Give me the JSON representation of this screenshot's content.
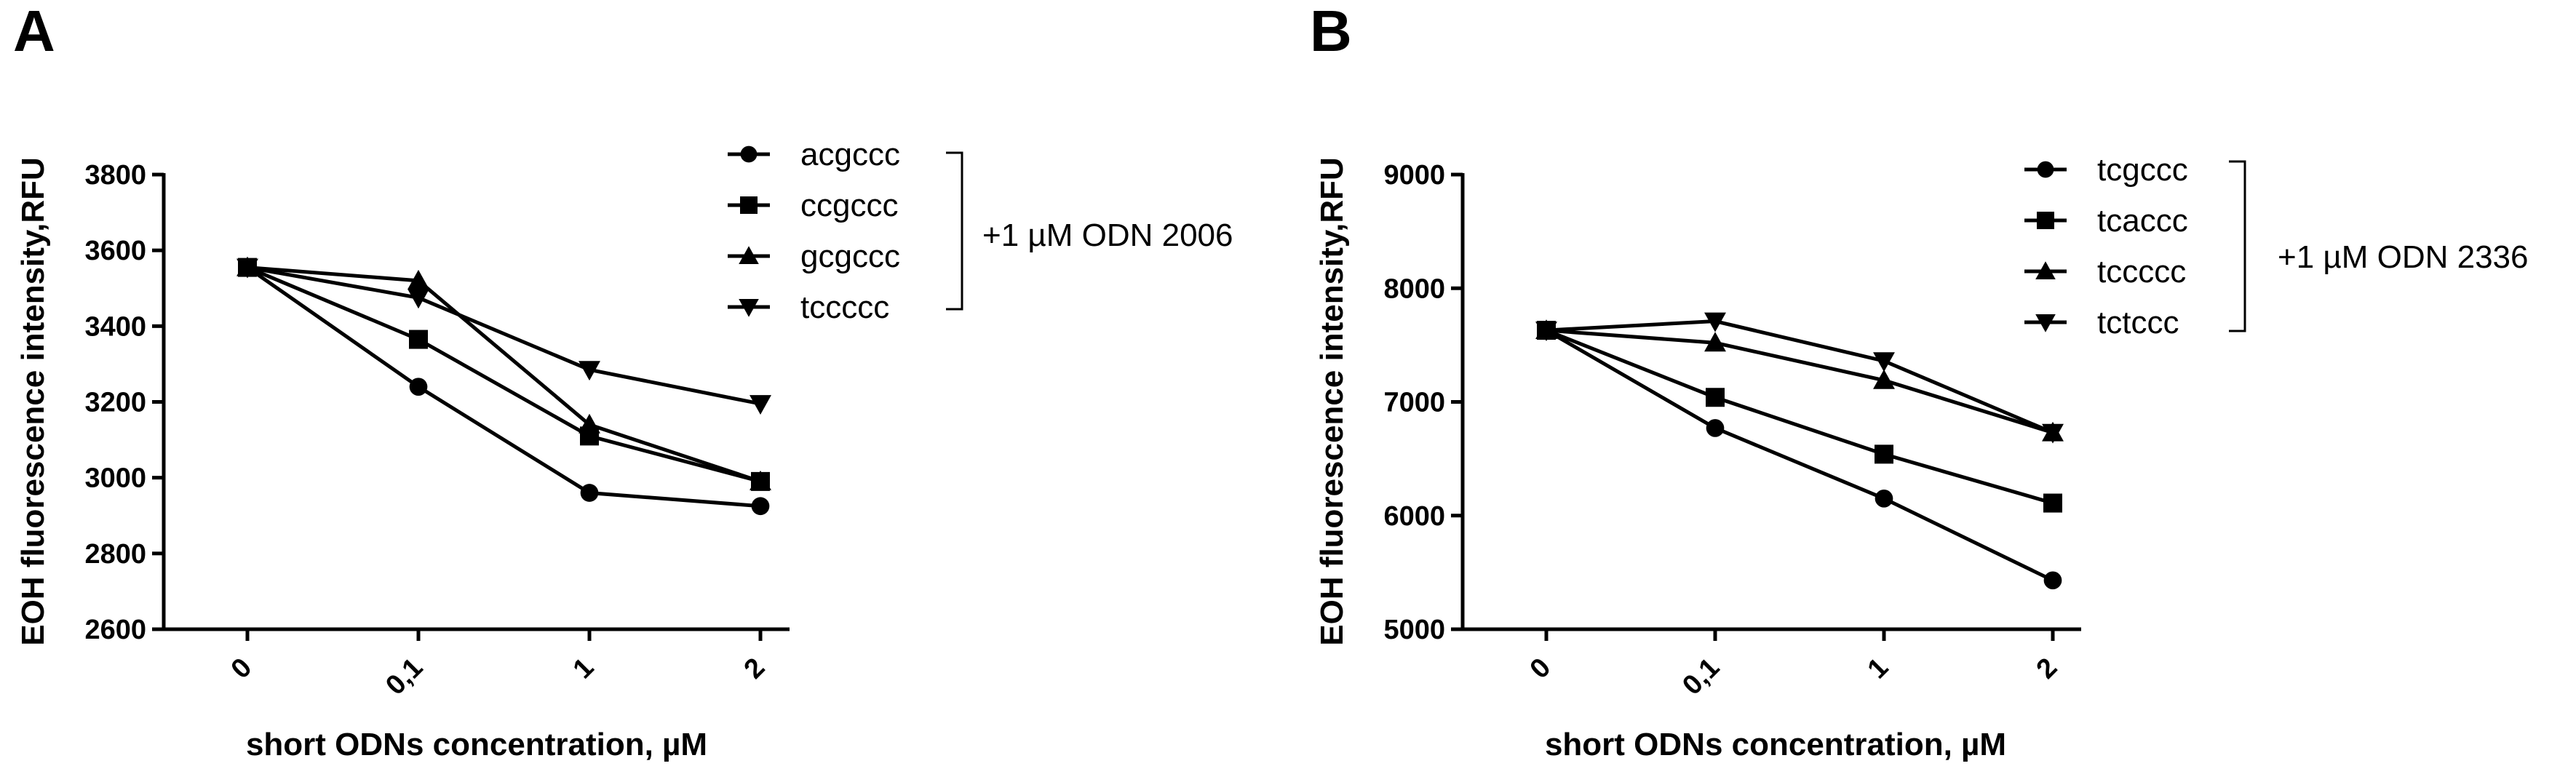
{
  "chart_data": [
    {
      "panel_label": "A",
      "type": "line",
      "title": "",
      "xlabel": "short ODNs concentration, µM",
      "ylabel": "EOH fluorescence intensity,RFU",
      "categories": [
        "0",
        "0,1",
        "1",
        "2"
      ],
      "ylim": [
        2600,
        3800
      ],
      "yticks": [
        2600,
        2800,
        3000,
        3200,
        3400,
        3600,
        3800
      ],
      "bracket_label": "+1 µM ODN 2006",
      "legend_position": "top-right",
      "series": [
        {
          "name": "acgccc",
          "marker": "circle",
          "values": [
            3555,
            3240,
            2960,
            2925
          ]
        },
        {
          "name": "ccgccc",
          "marker": "square",
          "values": [
            3555,
            3365,
            3110,
            2990
          ]
        },
        {
          "name": "gcgccc",
          "marker": "triangle-up",
          "values": [
            3555,
            3520,
            3140,
            2990
          ]
        },
        {
          "name": "tccccc",
          "marker": "triangle-down",
          "values": [
            3555,
            3475,
            3285,
            3195
          ]
        }
      ]
    },
    {
      "panel_label": "B",
      "type": "line",
      "title": "",
      "xlabel": "short ODNs concentration, µM",
      "ylabel": "EOH fluorescence intensity,RFU",
      "categories": [
        "0",
        "0,1",
        "1",
        "2"
      ],
      "ylim": [
        5000,
        9000
      ],
      "yticks": [
        5000,
        6000,
        7000,
        8000,
        9000
      ],
      "bracket_label": "+1 µM ODN 2336",
      "legend_position": "top-right",
      "series": [
        {
          "name": "tcgccc",
          "marker": "circle",
          "values": [
            7630,
            6770,
            6150,
            5430
          ]
        },
        {
          "name": "tcaccc",
          "marker": "square",
          "values": [
            7630,
            7040,
            6540,
            6110
          ]
        },
        {
          "name": "tccccc",
          "marker": "triangle-up",
          "values": [
            7630,
            7520,
            7190,
            6730
          ]
        },
        {
          "name": "tctccc",
          "marker": "triangle-down",
          "values": [
            7630,
            7710,
            7360,
            6730
          ]
        }
      ]
    }
  ]
}
